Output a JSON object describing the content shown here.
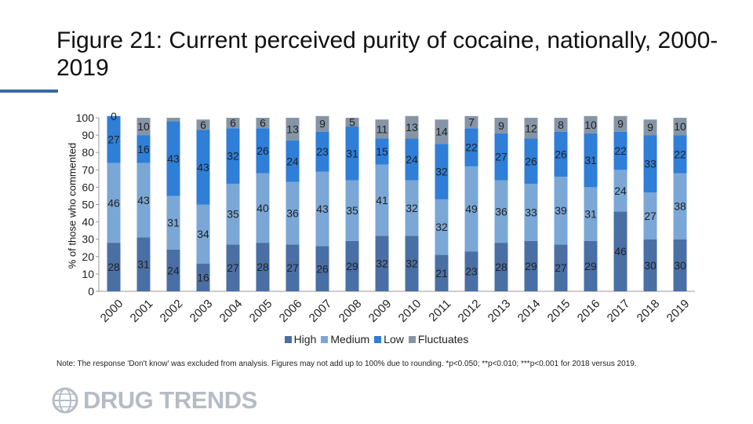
{
  "title": "Figure 21: Current perceived purity of cocaine, nationally, 2000-2019",
  "note": "Note: The response 'Don't know' was excluded from analysis. Figures may not add up to 100% due to rounding. *p<0.050; **p<0.010; ***p<0.001 for 2018 versus 2019.",
  "brand": "DRUG TRENDS",
  "chart_data": {
    "type": "bar",
    "stacked": true,
    "categories": [
      "2000",
      "2001",
      "2002",
      "2003",
      "2004",
      "2005",
      "2006",
      "2007",
      "2008",
      "2009",
      "2010",
      "2011",
      "2012",
      "2013",
      "2014",
      "2015",
      "2016",
      "2017",
      "2018",
      "2019"
    ],
    "ylabel": "% of those who commented",
    "ylim": [
      0,
      100
    ],
    "yticks": [
      0,
      10,
      20,
      30,
      40,
      50,
      60,
      70,
      80,
      90,
      100
    ],
    "legend_position": "bottom",
    "series": [
      {
        "name": "High",
        "color": "#4a6fa5",
        "values": [
          28,
          31,
          24,
          16,
          27,
          28,
          27,
          26,
          29,
          32,
          32,
          21,
          23,
          28,
          29,
          27,
          29,
          46,
          30,
          30
        ]
      },
      {
        "name": "Medium",
        "color": "#7aa7d6",
        "values": [
          46,
          43,
          31,
          34,
          35,
          40,
          36,
          43,
          35,
          41,
          32,
          32,
          49,
          36,
          33,
          39,
          31,
          24,
          27,
          38
        ]
      },
      {
        "name": "Low",
        "color": "#2f7ed8",
        "values": [
          27,
          16,
          43,
          43,
          32,
          26,
          24,
          23,
          31,
          15,
          24,
          32,
          22,
          27,
          26,
          26,
          31,
          22,
          33,
          22
        ]
      },
      {
        "name": "Fluctuates",
        "color": "#8595a6",
        "values": [
          0,
          10,
          2,
          6,
          6,
          6,
          13,
          9,
          5,
          11,
          13,
          14,
          7,
          9,
          12,
          8,
          10,
          9,
          9,
          10
        ]
      }
    ],
    "labels": [
      [
        "28",
        "46",
        "27",
        "0"
      ],
      [
        "31",
        "43",
        "16",
        "10"
      ],
      [
        "24",
        "31",
        "43",
        ""
      ],
      [
        "16",
        "34",
        "43",
        "6"
      ],
      [
        "27",
        "35",
        "32",
        "6"
      ],
      [
        "28",
        "40",
        "26",
        "6"
      ],
      [
        "27",
        "36",
        "24",
        "13"
      ],
      [
        "26",
        "43",
        "23",
        "9"
      ],
      [
        "29",
        "35",
        "31",
        "5"
      ],
      [
        "32",
        "41",
        "15",
        "11"
      ],
      [
        "32",
        "32",
        "24",
        "13"
      ],
      [
        "21",
        "32",
        "32",
        "14"
      ],
      [
        "23",
        "49",
        "22",
        "7"
      ],
      [
        "28",
        "36",
        "27",
        "9"
      ],
      [
        "29",
        "33",
        "26",
        "12"
      ],
      [
        "27",
        "39",
        "26",
        "8"
      ],
      [
        "29",
        "31",
        "31",
        "10"
      ],
      [
        "46",
        "24",
        "22",
        "9"
      ],
      [
        "30",
        "27",
        "33",
        "9"
      ],
      [
        "30",
        "38",
        "22",
        "10"
      ]
    ]
  }
}
